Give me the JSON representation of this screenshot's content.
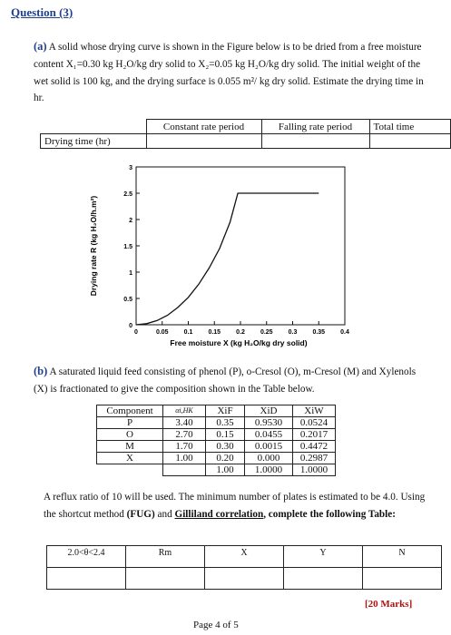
{
  "question_title": "Question (3)",
  "part_a": {
    "tag": "(a)",
    "text": "A solid whose drying curve is shown in the Figure below is to be dried from a free moisture content X₁=0.30 kg H₂O/kg dry solid to X₂=0.05 kg H₂O/kg dry solid. The initial weight of the wet solid is 100 kg, and the drying surface is 0.055 m²/ kg dry solid. Estimate the drying time in hr.",
    "table": {
      "headers": [
        "Constant rate period",
        "Falling rate period",
        "Total time"
      ],
      "row_label": "Drying time (hr)"
    }
  },
  "chart_data": {
    "type": "line",
    "xlabel": "Free moisture X (kg H₂O/kg dry solid)",
    "ylabel": "Drying rate R (kg H₂O/h.m²)",
    "xlim": [
      0,
      0.4
    ],
    "ylim": [
      0,
      3
    ],
    "x_ticks": [
      "0",
      "0.05",
      "0.1",
      "0.15",
      "0.2",
      "0.25",
      "0.3",
      "0.35",
      "0.4"
    ],
    "y_ticks": [
      "0",
      "0.5",
      "1",
      "1.5",
      "2",
      "2.5",
      "3"
    ],
    "series": [
      {
        "x": [
          0,
          0.02,
          0.04,
          0.06,
          0.08,
          0.1,
          0.12,
          0.14,
          0.16,
          0.18,
          0.195,
          0.35
        ],
        "y": [
          0,
          0.02,
          0.08,
          0.18,
          0.33,
          0.52,
          0.77,
          1.08,
          1.45,
          1.95,
          2.5,
          2.5
        ]
      }
    ]
  },
  "part_b": {
    "tag": "(b)",
    "text": "A saturated liquid feed consisting of phenol (P), o-Cresol (O), m-Cresol (M) and Xylenols (X) is fractionated to give the composition shown in the Table below.",
    "table": {
      "headers": [
        "Component",
        "αi,HK",
        "XiF",
        "XiD",
        "XiW"
      ],
      "rows": [
        [
          "P",
          "3.40",
          "0.35",
          "0.9530",
          "0.0524"
        ],
        [
          "O",
          "2.70",
          "0.15",
          "0.0455",
          "0.2017"
        ],
        [
          "M",
          "1.70",
          "0.30",
          "0.0015",
          "0.4472"
        ],
        [
          "X",
          "1.00",
          "0.20",
          "0.000",
          "0.2987"
        ],
        [
          "",
          "",
          "1.00",
          "1.0000",
          "1.0000"
        ]
      ]
    },
    "text2_pre": "A reflux ratio of 10 will be used. The minimum number of plates is estimated to be 4.0. Using the shortcut method ",
    "text2_bold1": "(FUG)",
    "text2_mid": " and ",
    "text2_bold2": "Gilliland correlation",
    "text2_post": ", complete the following Table:",
    "table2": {
      "headers": [
        "2.0<θ<2.4",
        "Rm",
        "X",
        "Y",
        "N"
      ]
    }
  },
  "marks": "[20 Marks]",
  "page": "Page 4 of 5"
}
